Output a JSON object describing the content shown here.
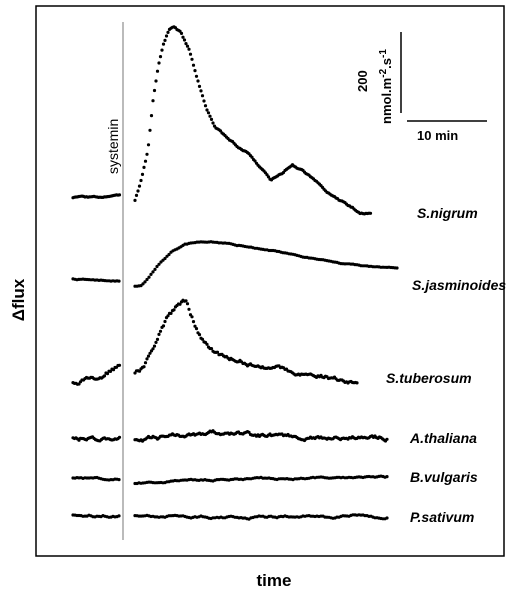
{
  "chart_data": {
    "type": "line",
    "xlabel": "time",
    "ylabel": "Δflux",
    "annotation": "systemin",
    "scale_bar": {
      "vertical_value": "200",
      "vertical_unit_prefix": "nmol.m",
      "vertical_unit_exp1": "-2",
      "vertical_unit_mid": ".s",
      "vertical_unit_exp2": "-1",
      "horizontal_label": "10 min"
    },
    "grid": false,
    "legend": "none",
    "series": [
      {
        "name": "S.nigrum"
      },
      {
        "name": "S.jasminoides"
      },
      {
        "name": "S.tuberosum"
      },
      {
        "name": "A.thaliana"
      },
      {
        "name": "B.vulgaris"
      },
      {
        "name": "P.sativum"
      }
    ]
  }
}
